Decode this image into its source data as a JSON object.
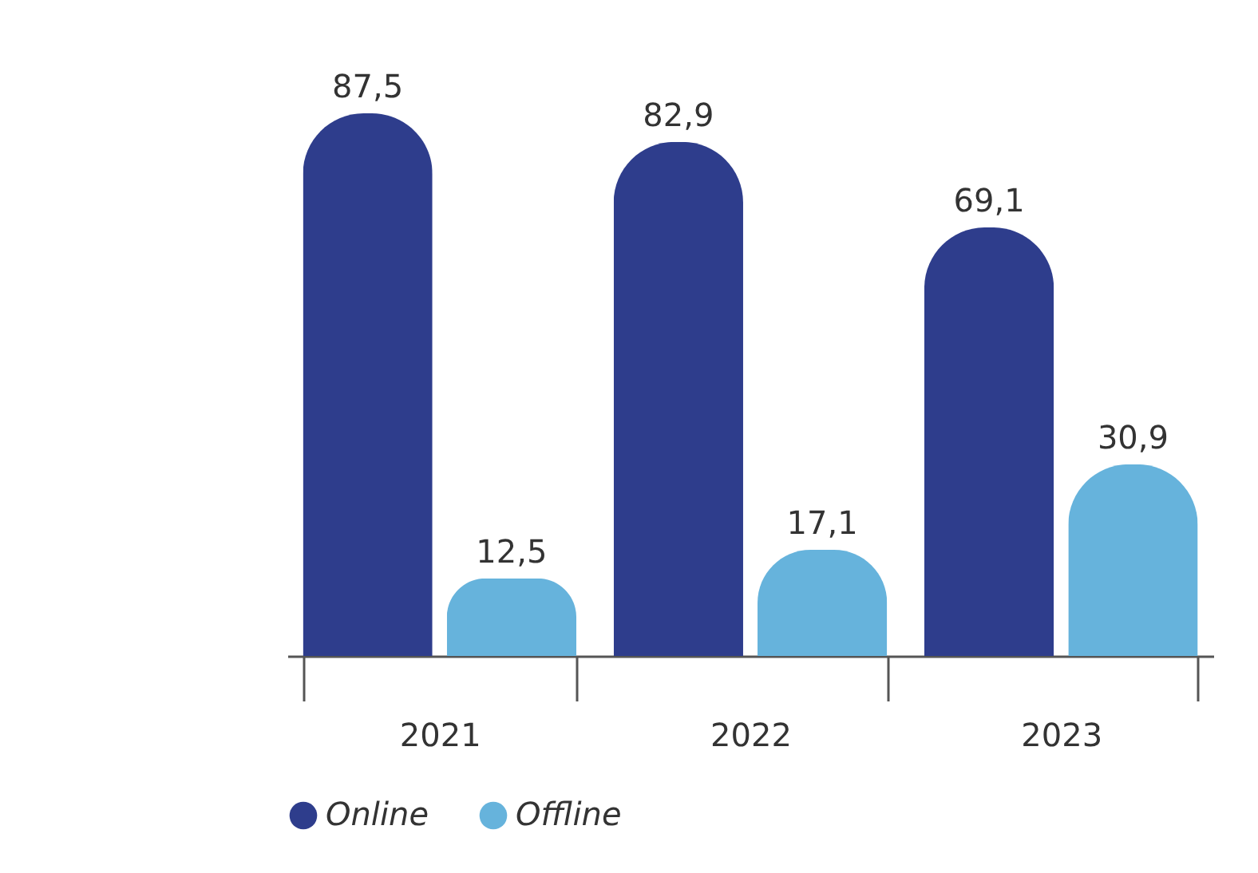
{
  "chart_data": {
    "type": "bar",
    "categories": [
      "2021",
      "2022",
      "2023"
    ],
    "legend": "bottom",
    "series": [
      {
        "name": "Online",
        "color": "#2e3d8c",
        "values": [
          87.5,
          82.9,
          69.1
        ],
        "value_labels": [
          "87,5",
          "82,9",
          "69,1"
        ]
      },
      {
        "name": "Offline",
        "color": "#66b3dc",
        "values": [
          12.5,
          17.1,
          30.9
        ],
        "value_labels": [
          "12,5",
          "17,1",
          "30,9"
        ]
      }
    ]
  }
}
